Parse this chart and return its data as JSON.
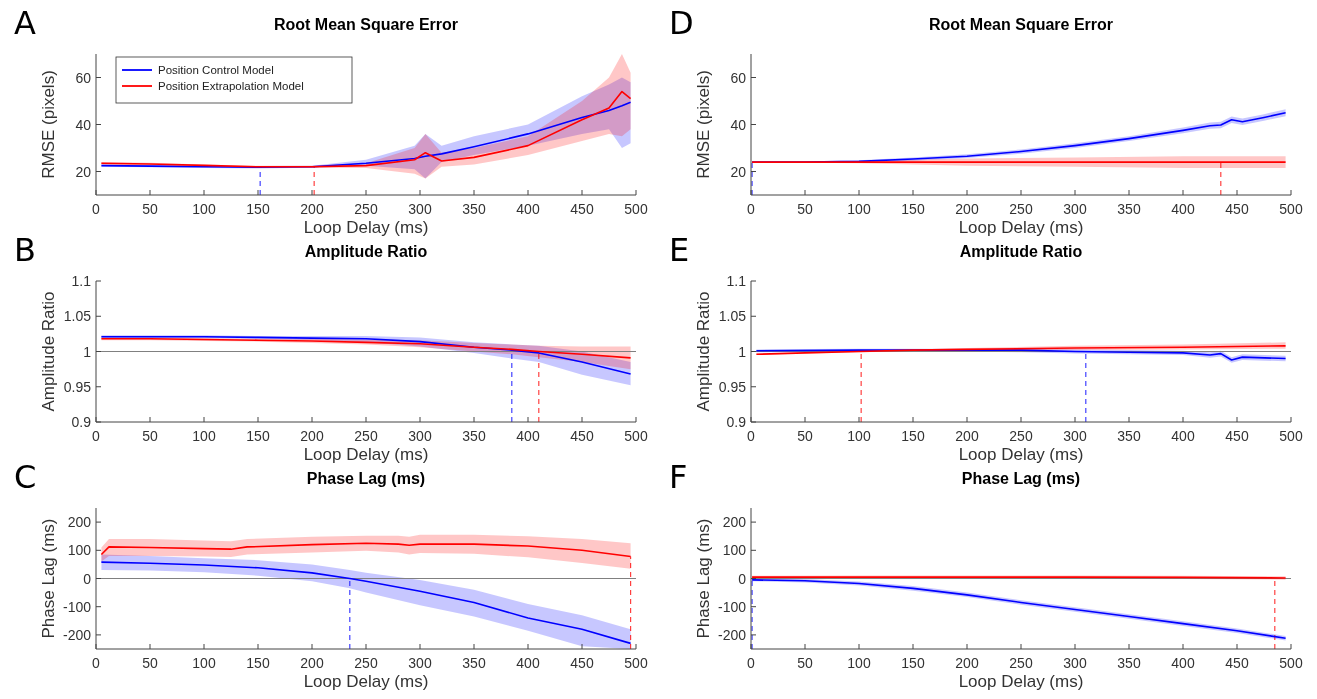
{
  "chart_data": [
    {
      "type": "line",
      "annotations": [
        "A"
      ],
      "title": "Root Mean Square Error",
      "xlabel": "Loop Delay (ms)",
      "ylabel": "RMSE (pixels)",
      "xlim": [
        0,
        500
      ],
      "xticks": [
        0,
        50,
        100,
        150,
        200,
        250,
        300,
        350,
        400,
        450,
        500
      ],
      "ylim": [
        10,
        70
      ],
      "yticks": [
        20,
        40,
        60
      ],
      "legend": "top left",
      "series": [
        {
          "name": "Position Control Model",
          "color": "#0000ff",
          "x": [
            5,
            50,
            100,
            150,
            200,
            250,
            295,
            305,
            320,
            350,
            400,
            450,
            475,
            487,
            495
          ],
          "values": [
            22.5,
            22.3,
            22,
            21.8,
            22,
            23.5,
            25.5,
            26.5,
            27.5,
            30.5,
            36,
            43,
            46,
            48,
            49.5
          ],
          "lower": [
            22,
            21.8,
            21.5,
            21.3,
            21.6,
            22.5,
            21,
            17,
            24,
            27,
            31,
            36,
            38,
            30,
            32
          ],
          "upper": [
            23,
            22.8,
            22.5,
            22.3,
            22.5,
            25,
            31,
            36,
            31,
            35,
            40,
            52,
            57,
            60,
            58
          ]
        },
        {
          "name": "Position Extrapolation Model",
          "color": "#ff0000",
          "x": [
            5,
            50,
            100,
            150,
            200,
            250,
            295,
            305,
            320,
            350,
            400,
            450,
            475,
            487,
            495
          ],
          "values": [
            23.5,
            23.2,
            22.6,
            22,
            22,
            22.5,
            25,
            28,
            24.5,
            26,
            31,
            42,
            47,
            54,
            51
          ],
          "lower": [
            23,
            22.7,
            22.2,
            21.6,
            21.6,
            21.5,
            19,
            17,
            22,
            23,
            27,
            33,
            36,
            35,
            38
          ],
          "upper": [
            24,
            23.7,
            23,
            22.4,
            22.4,
            23.5,
            30,
            36,
            28,
            30,
            35,
            50,
            60,
            70,
            62
          ]
        }
      ],
      "ref_lines": [
        {
          "axis": "x",
          "value": 152,
          "color": "#0000ff",
          "line_style": "dashed"
        },
        {
          "axis": "x",
          "value": 202,
          "color": "#ff0000",
          "line_style": "dashed"
        }
      ]
    },
    {
      "type": "line",
      "annotations": [
        "B"
      ],
      "title": "Amplitude Ratio",
      "xlabel": "Loop Delay (ms)",
      "ylabel": "Amplitude Ratio",
      "xlim": [
        0,
        500
      ],
      "xticks": [
        0,
        50,
        100,
        150,
        200,
        250,
        300,
        350,
        400,
        450,
        500
      ],
      "ylim": [
        0.9,
        1.1
      ],
      "yticks": [
        0.9,
        0.95,
        1,
        1.05,
        1.1
      ],
      "series": [
        {
          "color": "#0000ff",
          "x": [
            5,
            50,
            100,
            150,
            200,
            250,
            300,
            350,
            385,
            410,
            450,
            495
          ],
          "values": [
            1.021,
            1.021,
            1.021,
            1.02,
            1.019,
            1.018,
            1.014,
            1.006,
            1.002,
            0.998,
            0.985,
            0.968
          ],
          "lower": [
            1.019,
            1.019,
            1.019,
            1.018,
            1.016,
            1.013,
            1.007,
            0.998,
            0.99,
            0.985,
            0.967,
            0.952
          ],
          "upper": [
            1.023,
            1.023,
            1.023,
            1.022,
            1.022,
            1.022,
            1.02,
            1.013,
            1.01,
            1.008,
            1.0,
            0.985
          ]
        },
        {
          "color": "#ff0000",
          "x": [
            5,
            50,
            100,
            150,
            200,
            250,
            300,
            350,
            385,
            410,
            450,
            495
          ],
          "values": [
            1.018,
            1.018,
            1.017,
            1.016,
            1.015,
            1.013,
            1.011,
            1.006,
            1.003,
            1.0,
            0.996,
            0.991
          ],
          "lower": [
            1.016,
            1.016,
            1.015,
            1.014,
            1.012,
            1.01,
            1.006,
            1.0,
            0.996,
            0.992,
            0.985,
            0.975
          ],
          "upper": [
            1.02,
            1.02,
            1.019,
            1.018,
            1.018,
            1.017,
            1.016,
            1.012,
            1.01,
            1.008,
            1.007,
            1.007
          ]
        }
      ],
      "ref_lines": [
        {
          "axis": "y",
          "value": 1,
          "color": "#808080",
          "line_style": "solid"
        },
        {
          "axis": "x",
          "value": 385,
          "color": "#0000ff",
          "line_style": "dashed"
        },
        {
          "axis": "x",
          "value": 410,
          "color": "#ff0000",
          "line_style": "dashed"
        }
      ]
    },
    {
      "type": "line",
      "annotations": [
        "C"
      ],
      "title": "Phase Lag (ms)",
      "xlabel": "Loop Delay (ms)",
      "ylabel": "Phase Lag (ms)",
      "xlim": [
        0,
        500
      ],
      "xticks": [
        0,
        50,
        100,
        150,
        200,
        250,
        300,
        350,
        400,
        450,
        500
      ],
      "ylim": [
        -250,
        250
      ],
      "yticks": [
        -200,
        -100,
        0,
        100,
        200
      ],
      "series": [
        {
          "color": "#0000ff",
          "x": [
            5,
            50,
            100,
            150,
            200,
            235,
            250,
            300,
            350,
            400,
            450,
            495
          ],
          "values": [
            58,
            54,
            48,
            38,
            20,
            0,
            -10,
            -45,
            -85,
            -140,
            -180,
            -230
          ],
          "lower": [
            30,
            28,
            22,
            10,
            -10,
            -35,
            -50,
            -95,
            -135,
            -185,
            -240,
            -250
          ],
          "upper": [
            85,
            80,
            72,
            65,
            50,
            30,
            20,
            -5,
            -40,
            -90,
            -130,
            -180
          ]
        },
        {
          "color": "#ff0000",
          "x": [
            5,
            12,
            50,
            100,
            125,
            140,
            200,
            250,
            280,
            290,
            300,
            350,
            400,
            450,
            495
          ],
          "values": [
            85,
            112,
            110,
            106,
            104,
            112,
            120,
            125,
            122,
            118,
            122,
            122,
            115,
            100,
            78
          ],
          "lower": [
            60,
            80,
            80,
            78,
            76,
            85,
            92,
            98,
            92,
            85,
            90,
            88,
            75,
            55,
            35
          ],
          "upper": [
            110,
            140,
            140,
            135,
            132,
            140,
            148,
            152,
            152,
            148,
            155,
            155,
            150,
            140,
            125
          ]
        }
      ],
      "ref_lines": [
        {
          "axis": "y",
          "value": 0,
          "color": "#808080",
          "line_style": "solid"
        },
        {
          "axis": "x",
          "value": 235,
          "color": "#0000ff",
          "line_style": "dashed"
        },
        {
          "axis": "x",
          "value": 495,
          "color": "#ff0000",
          "line_style": "dashed"
        }
      ]
    },
    {
      "type": "line",
      "annotations": [
        "D"
      ],
      "title": "Root Mean Square Error",
      "xlabel": "Loop Delay (ms)",
      "ylabel": "RMSE (pixels)",
      "xlim": [
        0,
        500
      ],
      "xticks": [
        0,
        50,
        100,
        150,
        200,
        250,
        300,
        350,
        400,
        450,
        500
      ],
      "ylim": [
        10,
        70
      ],
      "yticks": [
        20,
        40,
        60
      ],
      "series": [
        {
          "color": "#0000ff",
          "x": [
            1,
            50,
            100,
            150,
            200,
            250,
            300,
            350,
            400,
            425,
            435,
            445,
            455,
            475,
            495
          ],
          "values": [
            24,
            24,
            24.3,
            25.3,
            26.5,
            28.5,
            31,
            34,
            37.5,
            39.5,
            39.8,
            42,
            41.2,
            43,
            45
          ],
          "lower": [
            23.8,
            23.7,
            23.8,
            24.6,
            25.7,
            27.6,
            30,
            33,
            36.3,
            38.2,
            38.4,
            40.6,
            39.8,
            41.6,
            43.5
          ],
          "upper": [
            24.2,
            24.3,
            24.8,
            26,
            27.3,
            29.4,
            32,
            35,
            38.7,
            40.8,
            41.2,
            43.4,
            42.6,
            44.4,
            46.5
          ]
        },
        {
          "color": "#ff0000",
          "x": [
            1,
            100,
            200,
            300,
            400,
            495
          ],
          "values": [
            24,
            24,
            24,
            24,
            24,
            24
          ],
          "lower": [
            24,
            23.5,
            22.5,
            22,
            21.5,
            21.5
          ],
          "upper": [
            24,
            24.5,
            25.5,
            26,
            26.5,
            26.5
          ]
        }
      ],
      "ref_lines": [
        {
          "axis": "x",
          "value": 1,
          "color": "#0000ff",
          "line_style": "dashed"
        },
        {
          "axis": "x",
          "value": 435,
          "color": "#ff0000",
          "line_style": "dashed"
        }
      ]
    },
    {
      "type": "line",
      "annotations": [
        "E"
      ],
      "title": "Amplitude Ratio",
      "xlabel": "Loop Delay (ms)",
      "ylabel": "Amplitude Ratio",
      "xlim": [
        0,
        500
      ],
      "xticks": [
        0,
        50,
        100,
        150,
        200,
        250,
        300,
        350,
        400,
        450,
        500
      ],
      "ylim": [
        0.9,
        1.1
      ],
      "yticks": [
        0.9,
        0.95,
        1,
        1.05,
        1.1
      ],
      "series": [
        {
          "color": "#0000ff",
          "x": [
            5,
            100,
            200,
            250,
            300,
            350,
            400,
            425,
            435,
            445,
            455,
            495
          ],
          "values": [
            1.001,
            1.002,
            1.002,
            1.002,
            1.0,
            0.999,
            0.998,
            0.995,
            0.997,
            0.988,
            0.992,
            0.99
          ],
          "lower": [
            0.999,
            1.0,
            1.0,
            0.999,
            0.997,
            0.996,
            0.995,
            0.991,
            0.993,
            0.984,
            0.988,
            0.986
          ],
          "upper": [
            1.003,
            1.004,
            1.004,
            1.004,
            1.003,
            1.002,
            1.001,
            0.999,
            1.001,
            0.992,
            0.996,
            0.994
          ]
        },
        {
          "color": "#ff0000",
          "x": [
            5,
            50,
            100,
            150,
            200,
            300,
            400,
            495
          ],
          "values": [
            0.996,
            0.998,
            1.0,
            1.002,
            1.003,
            1.005,
            1.006,
            1.008
          ],
          "lower": [
            0.995,
            0.997,
            0.999,
            1.0,
            1.001,
            1.002,
            1.003,
            1.004
          ],
          "upper": [
            0.997,
            0.999,
            1.001,
            1.003,
            1.005,
            1.008,
            1.01,
            1.013
          ]
        }
      ],
      "ref_lines": [
        {
          "axis": "y",
          "value": 1,
          "color": "#808080",
          "line_style": "solid"
        },
        {
          "axis": "x",
          "value": 102,
          "color": "#ff0000",
          "line_style": "dashed"
        },
        {
          "axis": "x",
          "value": 310,
          "color": "#0000ff",
          "line_style": "dashed"
        }
      ]
    },
    {
      "type": "line",
      "annotations": [
        "F"
      ],
      "title": "Phase Lag (ms)",
      "xlabel": "Loop Delay (ms)",
      "ylabel": "Phase Lag (ms)",
      "xlim": [
        0,
        500
      ],
      "xticks": [
        0,
        50,
        100,
        150,
        200,
        250,
        300,
        350,
        400,
        450,
        500
      ],
      "ylim": [
        -250,
        250
      ],
      "yticks": [
        -200,
        -100,
        0,
        100,
        200
      ],
      "series": [
        {
          "color": "#0000ff",
          "x": [
            1,
            50,
            100,
            150,
            200,
            250,
            300,
            350,
            400,
            450,
            495
          ],
          "values": [
            -5,
            -8,
            -18,
            -35,
            -58,
            -85,
            -110,
            -135,
            -160,
            -185,
            -212
          ],
          "lower": [
            -10,
            -14,
            -25,
            -43,
            -66,
            -93,
            -118,
            -143,
            -168,
            -193,
            -220
          ],
          "upper": [
            0,
            -2,
            -11,
            -27,
            -50,
            -77,
            -102,
            -127,
            -152,
            -177,
            -204
          ]
        },
        {
          "color": "#ff0000",
          "x": [
            1,
            100,
            200,
            300,
            400,
            495
          ],
          "values": [
            5,
            5,
            5,
            5,
            4,
            2
          ],
          "lower": [
            0,
            -1,
            -1,
            -1,
            -2,
            -4
          ],
          "upper": [
            10,
            11,
            11,
            11,
            10,
            8
          ]
        }
      ],
      "ref_lines": [
        {
          "axis": "y",
          "value": 0,
          "color": "#808080",
          "line_style": "solid"
        },
        {
          "axis": "x",
          "value": 1,
          "color": "#0000ff",
          "line_style": "dashed"
        },
        {
          "axis": "x",
          "value": 485,
          "color": "#ff0000",
          "line_style": "dashed"
        }
      ]
    }
  ]
}
